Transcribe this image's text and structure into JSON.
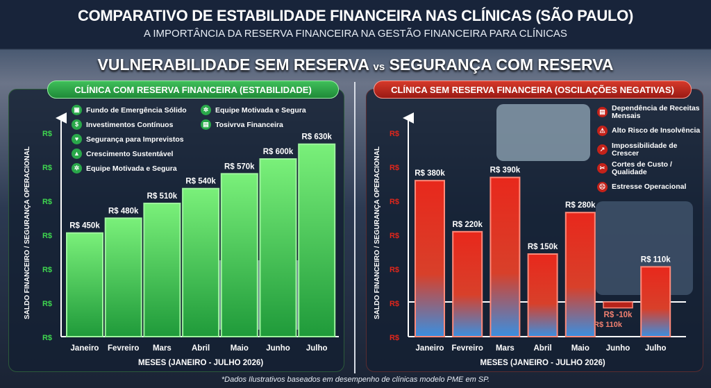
{
  "header": {
    "title": "COMPARATIVO DE ESTABILIDADE FINANCEIRA NAS CLÍNICAS (SÃO PAULO)",
    "subtitle": "A IMPORTÂNCIA DA RESERVA FINANCEIRA NA GESTÃO FINANCEIRA PARA CLÍNICAS"
  },
  "comparison": {
    "left": "VULNERABILIDADE SEM RESERVA",
    "vs": "vs",
    "right": "SEGURANÇA COM RESERVA"
  },
  "left_legend": [
    "Fundo de Emergência Sólido",
    "Investimentos Contínuos",
    "Segurança para Imprevistos",
    "Crescimento Sustentável",
    "Equipe Motivada e Segura",
    "Equipe Motivada e Segura",
    "Tosivrva Financeira"
  ],
  "right_legend": [
    "Dependência de Receitas Mensais",
    "Alto Risco de Insolvência",
    "Impossibilidade de Crescer",
    "Cortes de Custo / Qualidade",
    "Estresse Operacional"
  ],
  "right_extra_label": "R$ 110k",
  "footer": "*Dados Ilustrativos baseados em desempenho de clínicas modelo PME em SP.",
  "colors": {
    "green": "#3fd64f",
    "red": "#e2261b",
    "blue": "#3a8fe0"
  },
  "chart_data": [
    {
      "type": "bar",
      "title": "CLÍNICA COM RESERVA FINANCEIRA (ESTABILIDADE)",
      "xlabel": "MESES (JANEIRO - JULHO 2026)",
      "ylabel": "SALDO FINANCEIRO / SEGURANÇA OPERACIONAL",
      "y_tick_labels": [
        "R$",
        "R$",
        "R$",
        "R$",
        "R$",
        "R$",
        "R$"
      ],
      "categories": [
        "Janeiro",
        "Fevreiro",
        "Mars",
        "Abril",
        "Maio",
        "Junho",
        "Julho"
      ],
      "values": [
        450,
        480,
        510,
        540,
        570,
        600,
        630
      ],
      "labels": [
        "R$ 450k",
        "R$ 480k",
        "R$ 510k",
        "R$ 540k",
        "R$ 570k",
        "R$ 600k",
        "R$ 630k"
      ],
      "unit": "R$ mil",
      "ylim": [
        240,
        650
      ]
    },
    {
      "type": "bar",
      "title": "CLÍNICA SEM RESERVA FINANCEIRA (OSCILAÇÕES NEGATIVAS)",
      "xlabel": "MESES (JANEIRO - JULHO 2026)",
      "ylabel": "SALDO FINANCEIRO / SEGURANÇA OPERACIONAL",
      "y_tick_labels": [
        "R$",
        "R$",
        "R$",
        "R$",
        "R$",
        "R$",
        "R$"
      ],
      "categories": [
        "Janeiro",
        "Fevreiro",
        "Mars",
        "Abril",
        "Maio",
        "Junho",
        "Julho"
      ],
      "values": [
        380,
        220,
        390,
        150,
        280,
        -10,
        110
      ],
      "labels": [
        "R$ 380k",
        "R$ 220k",
        "R$ 390k",
        "R$ 150k",
        "R$ 280k",
        "R$ -10k",
        "R$ 110k"
      ],
      "unit": "R$ mil",
      "ylim": [
        -110,
        420
      ]
    }
  ]
}
